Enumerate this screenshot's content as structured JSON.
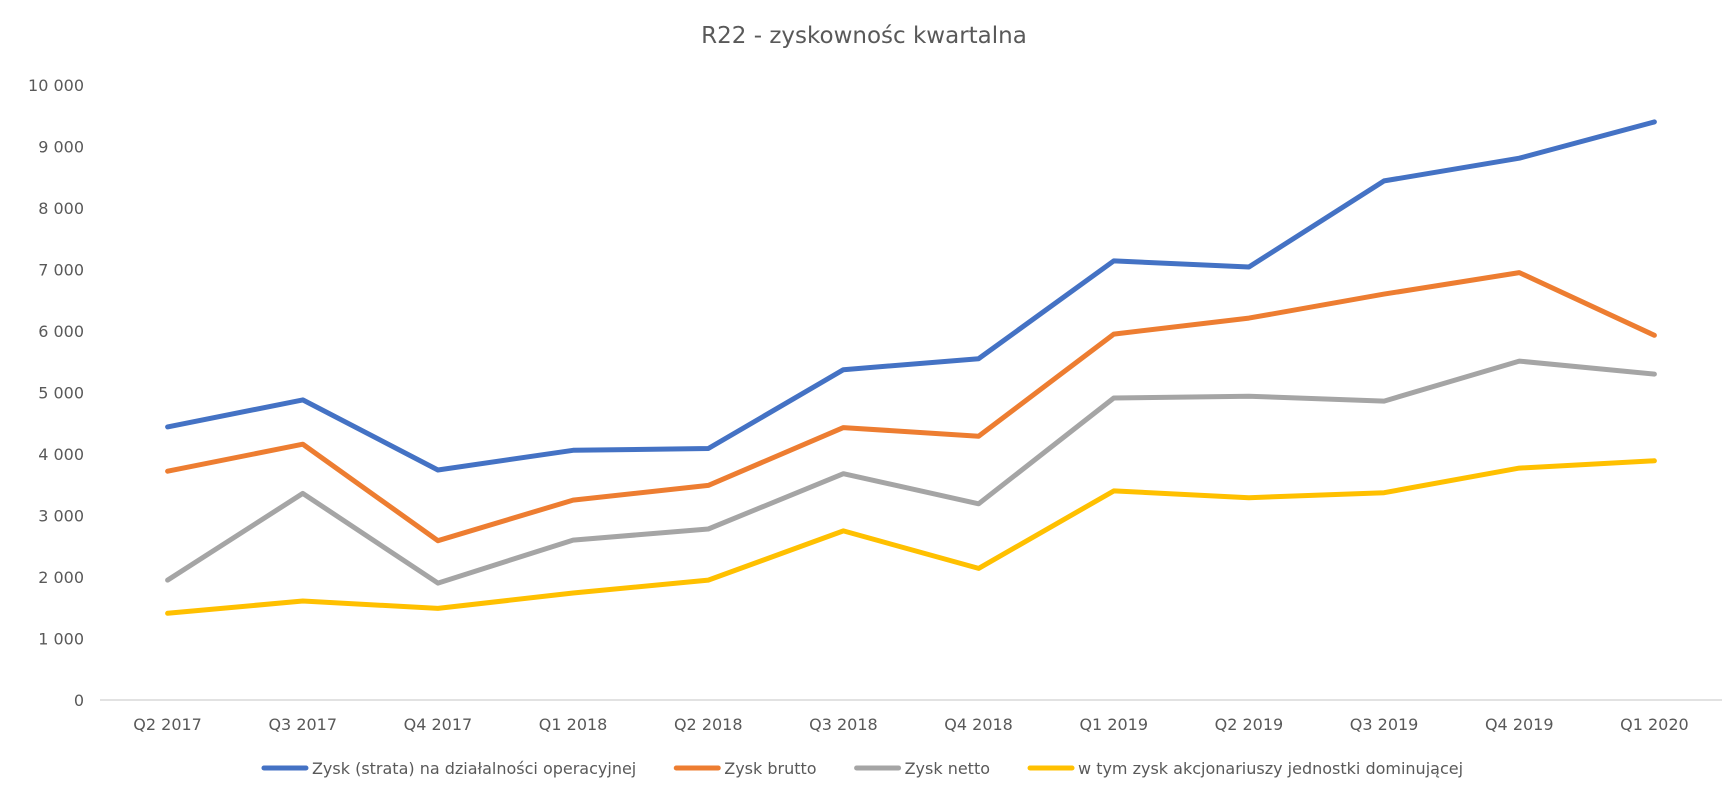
{
  "chart_data": {
    "type": "line",
    "title": "R22 - zyskownośc kwartalna",
    "categories": [
      "Q2 2017",
      "Q3 2017",
      "Q4 2017",
      "Q1 2018",
      "Q2 2018",
      "Q3 2018",
      "Q4 2018",
      "Q1 2019",
      "Q2 2019",
      "Q3 2019",
      "Q4 2019",
      "Q1 2020"
    ],
    "ylim": [
      0,
      10000
    ],
    "yticks": [
      0,
      1000,
      2000,
      3000,
      4000,
      5000,
      6000,
      7000,
      8000,
      9000,
      10000
    ],
    "ytick_labels": [
      "0",
      "1 000",
      "2 000",
      "3 000",
      "4 000",
      "5 000",
      "6 000",
      "7 000",
      "8 000",
      "9 000",
      "10 000"
    ],
    "grid": false,
    "legend_position": "bottom",
    "series": [
      {
        "name": "Zysk (strata) na działalności operacyjnej",
        "color": "#4472C4",
        "values": [
          4440,
          4880,
          3740,
          4060,
          4090,
          5370,
          5550,
          7140,
          7040,
          8440,
          8810,
          9400
        ]
      },
      {
        "name": "Zysk brutto",
        "color": "#ED7D31",
        "values": [
          3720,
          4160,
          2590,
          3250,
          3490,
          4430,
          4290,
          5950,
          6210,
          6600,
          6950,
          5930
        ]
      },
      {
        "name": "Zysk netto",
        "color": "#A5A5A5",
        "values": [
          1950,
          3360,
          1900,
          2600,
          2780,
          3680,
          3190,
          4910,
          4940,
          4860,
          5510,
          5300
        ]
      },
      {
        "name": "w tym zysk akcjonariuszy jednostki dominującej",
        "color": "#FFC000",
        "values": [
          1410,
          1610,
          1490,
          1740,
          1950,
          2750,
          2140,
          3400,
          3290,
          3370,
          3770,
          3890
        ]
      }
    ]
  }
}
